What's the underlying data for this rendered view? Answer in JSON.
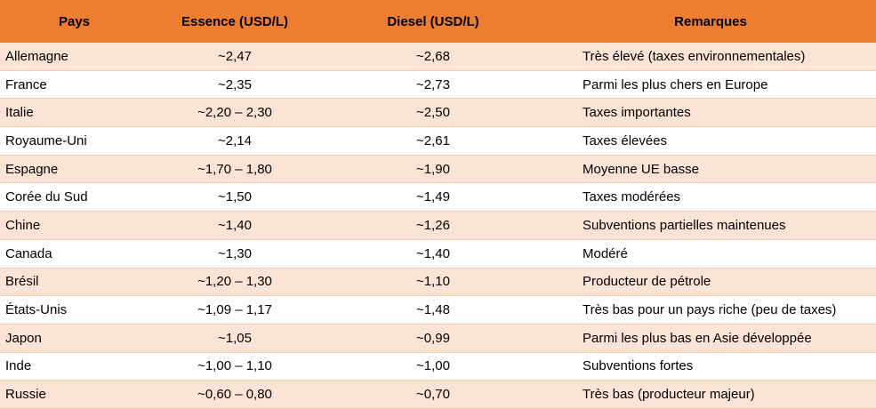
{
  "table": {
    "headers": [
      "Pays",
      "Essence (USD/L)",
      "Diesel (USD/L)",
      "Remarques"
    ],
    "rows": [
      [
        "Allemagne",
        "~2,47",
        "~2,68",
        "Très élevé (taxes environnementales)"
      ],
      [
        "France",
        "~2,35",
        "~2,73",
        "Parmi les plus chers en Europe"
      ],
      [
        "Italie",
        "~2,20 – 2,30",
        "~2,50",
        "Taxes importantes"
      ],
      [
        "Royaume-Uni",
        "~2,14",
        "~2,61",
        "Taxes élevées"
      ],
      [
        "Espagne",
        "~1,70 – 1,80",
        "~1,90",
        "Moyenne UE basse"
      ],
      [
        "Corée du Sud",
        "~1,50",
        "~1,49",
        "Taxes modérées"
      ],
      [
        "Chine",
        "~1,40",
        "~1,26",
        "Subventions partielles maintenues"
      ],
      [
        "Canada",
        "~1,30",
        "~1,40",
        "Modéré"
      ],
      [
        "Brésil",
        "~1,20 – 1,30",
        "~1,10",
        "Producteur de pétrole"
      ],
      [
        "États-Unis",
        "~1,09 – 1,17",
        "~1,48",
        "Très bas pour un pays riche (peu de taxes)"
      ],
      [
        "Japon",
        "~1,05",
        "~0,99",
        "Parmi les plus bas en Asie développée"
      ],
      [
        "Inde",
        "~1,00 – 1,10",
        "~1,00",
        "Subventions fortes"
      ],
      [
        "Russie",
        "~0,60 – 0,80",
        "~0,70",
        "Très bas (producteur majeur)"
      ]
    ]
  },
  "colors": {
    "header_bg": "#ed7d31",
    "row_odd_bg": "#fbe4d5",
    "row_even_bg": "#ffffff"
  }
}
